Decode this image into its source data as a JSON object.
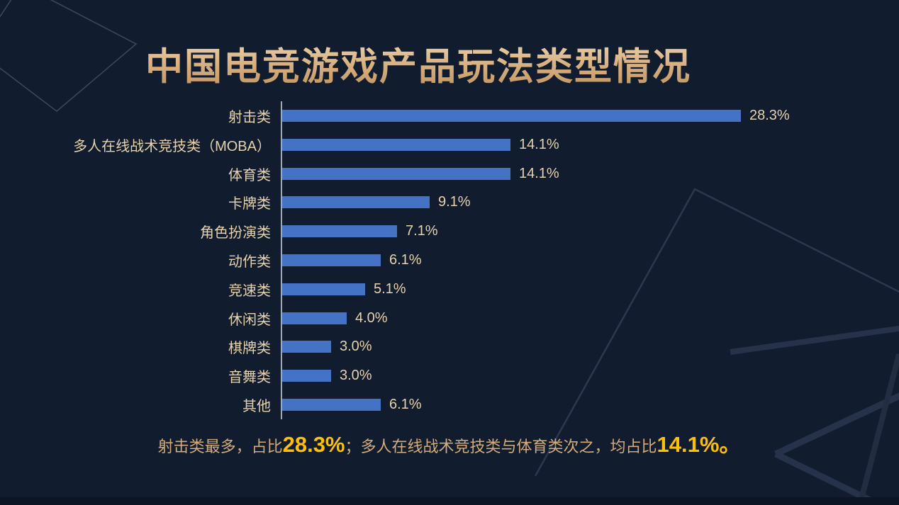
{
  "title": "中国电竞游戏产品玩法类型情况",
  "chart_data": {
    "type": "bar",
    "orientation": "horizontal",
    "title": "中国电竞游戏产品玩法类型情况",
    "categories": [
      "射击类",
      "多人在线战术竞技类（MOBA）",
      "体育类",
      "卡牌类",
      "角色扮演类",
      "动作类",
      "竞速类",
      "休闲类",
      "棋牌类",
      "音舞类",
      "其他"
    ],
    "values": [
      28.3,
      14.1,
      14.1,
      9.1,
      7.1,
      6.1,
      5.1,
      4.0,
      3.0,
      3.0,
      6.1
    ],
    "value_labels": [
      "28.3%",
      "14.1%",
      "14.1%",
      "9.1%",
      "7.1%",
      "6.1%",
      "5.1%",
      "4.0%",
      "3.0%",
      "3.0%",
      "6.1%"
    ],
    "xlabel": "",
    "ylabel": "",
    "xlim": [
      0,
      30
    ],
    "grid": false,
    "legend": false,
    "bar_color": "#4472c4",
    "label_color": "#e6d2ad",
    "axis_line_color": "#9fa8b4"
  },
  "caption": {
    "part1": "射击类最多，占比",
    "num1": "28.3%",
    "part2": "；多人在线战术竞技类与体育类次之，均占比",
    "num2": "14.1%。"
  },
  "colors": {
    "background": "#111c2e",
    "title_gold": "#d9b286",
    "caption_text": "#d3ac7c",
    "caption_highlight": "#ffc000",
    "bar_blue": "#4472c4",
    "deco_line": "#2c3850"
  }
}
